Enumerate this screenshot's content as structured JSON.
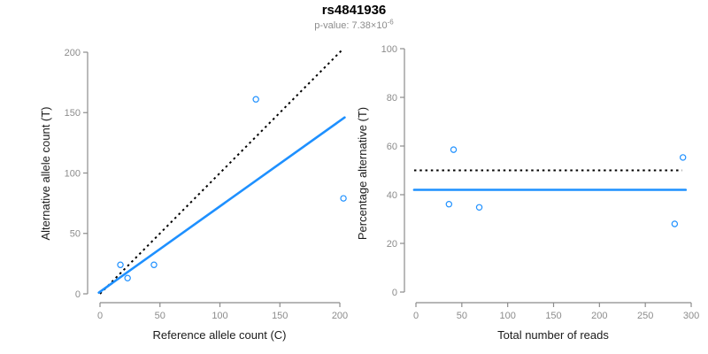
{
  "header": {
    "title": "rs4841936",
    "pvalue_prefix": "p-value: 7.38×10",
    "pvalue_exponent": "-6"
  },
  "colors": {
    "accent_blue": "#1E90FF",
    "line_black": "#000000",
    "axis_gray": "#8c8c8c",
    "tick_label_gray": "#8c8c8c",
    "label_black": "#1a1a1a"
  },
  "chart_data": [
    {
      "type": "scatter",
      "name": "allele-counts-plot",
      "title": "",
      "xlabel": "Reference allele count (C)",
      "ylabel": "Alternative allele count (T)",
      "xlim": [
        0,
        200
      ],
      "ylim": [
        0,
        200
      ],
      "xticks": [
        0,
        50,
        100,
        150,
        200
      ],
      "yticks": [
        0,
        50,
        100,
        150,
        200
      ],
      "grid": false,
      "points": [
        {
          "x": 17,
          "y": 24
        },
        {
          "x": 23,
          "y": 13
        },
        {
          "x": 45,
          "y": 24
        },
        {
          "x": 130,
          "y": 161
        },
        {
          "x": 203,
          "y": 79
        }
      ],
      "lines": [
        {
          "name": "identity-line",
          "style": "dotted",
          "color": "#000000",
          "x1": 0,
          "y1": 0,
          "x2": 203,
          "y2": 203
        },
        {
          "name": "regression-line",
          "style": "solid",
          "color": "#1E90FF",
          "x1": -1,
          "y1": 1,
          "x2": 204,
          "y2": 146
        }
      ]
    },
    {
      "type": "scatter",
      "name": "percentage-alternative-plot",
      "title": "",
      "xlabel": "Total number of reads",
      "ylabel": "Percentage alternative (T)",
      "xlim": [
        0,
        300
      ],
      "ylim": [
        0,
        100
      ],
      "xticks": [
        0,
        50,
        100,
        150,
        200,
        250,
        300
      ],
      "yticks": [
        0,
        20,
        40,
        60,
        80,
        100
      ],
      "grid": false,
      "points": [
        {
          "x": 41,
          "y": 58.5
        },
        {
          "x": 36,
          "y": 36.1
        },
        {
          "x": 69,
          "y": 34.8
        },
        {
          "x": 282,
          "y": 28
        },
        {
          "x": 291,
          "y": 55.3
        }
      ],
      "lines": [
        {
          "name": "expected-50pct-line",
          "style": "dotted",
          "color": "#000000",
          "x1": -2,
          "y1": 50,
          "x2": 290,
          "y2": 50
        },
        {
          "name": "mean-pct-line",
          "style": "solid",
          "color": "#1E90FF",
          "x1": -2,
          "y1": 42,
          "x2": 294,
          "y2": 42
        }
      ]
    }
  ]
}
